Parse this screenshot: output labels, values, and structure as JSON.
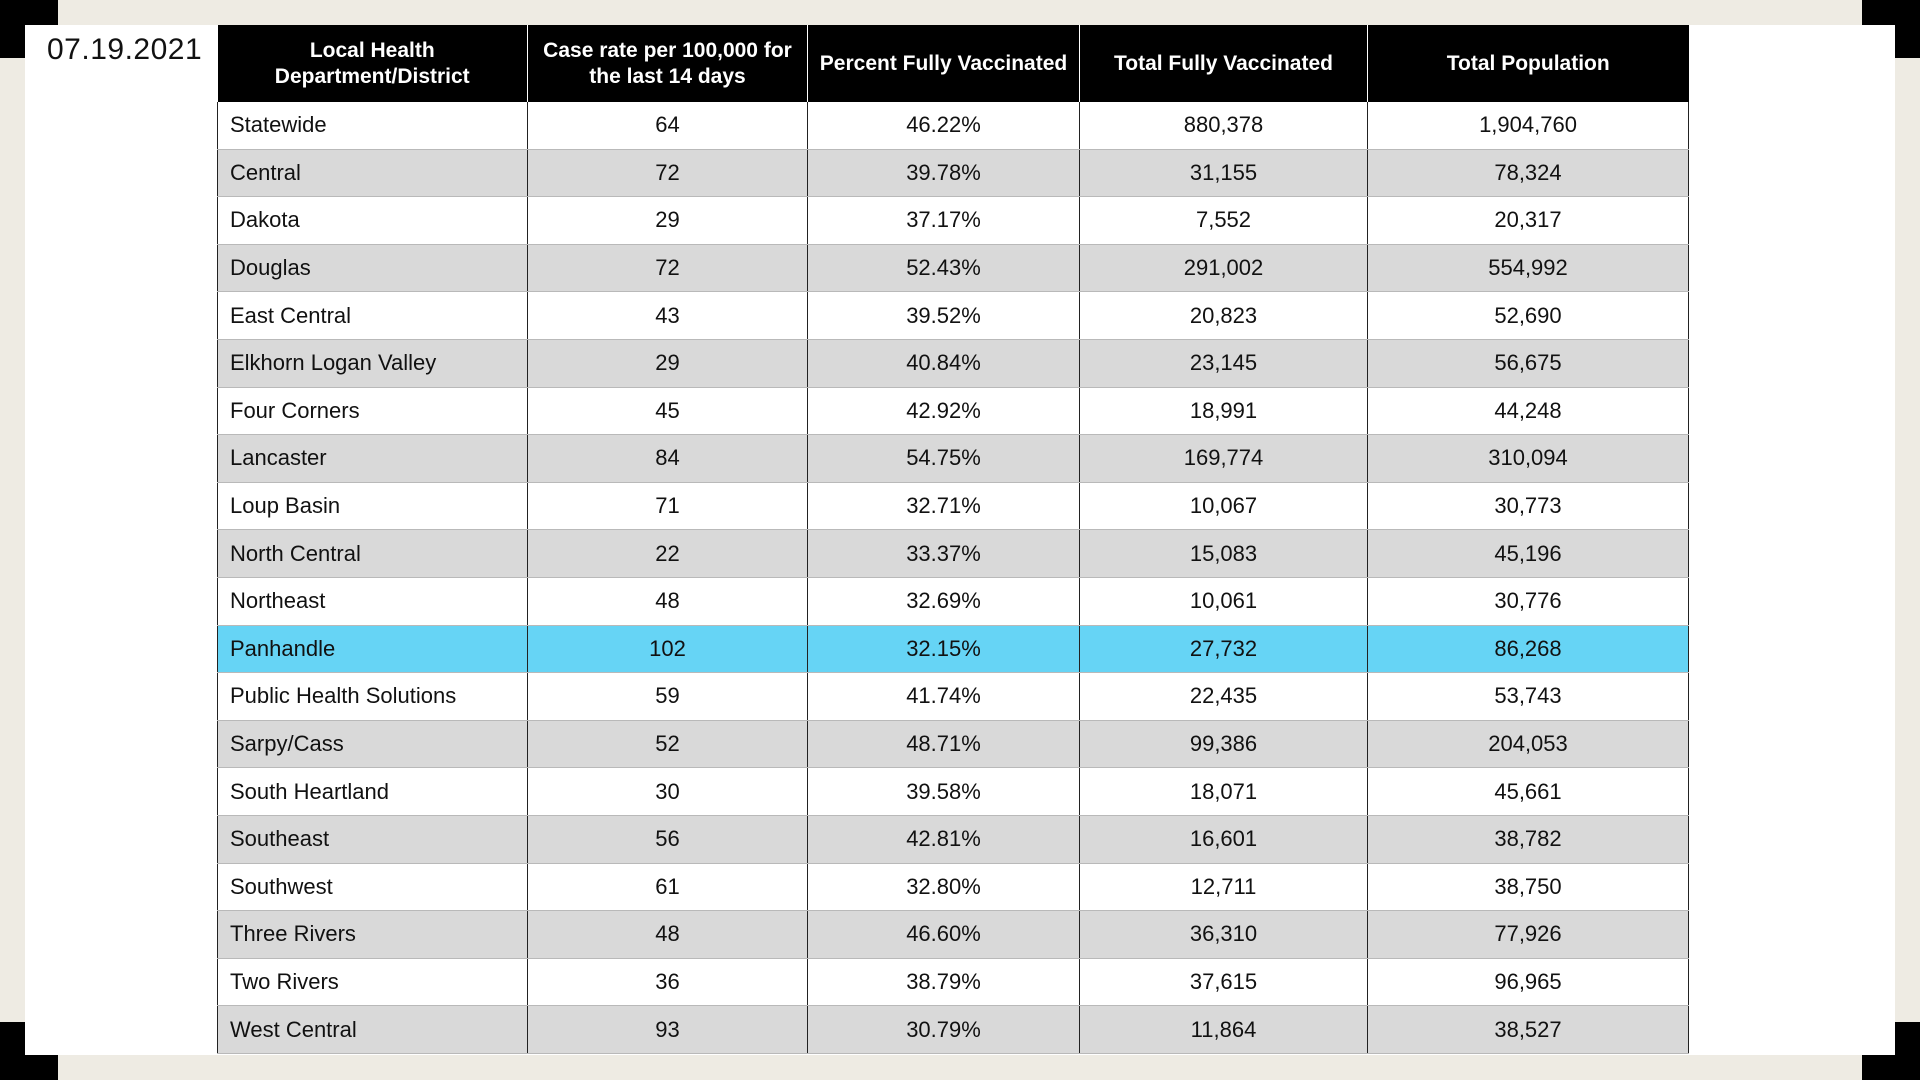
{
  "date": "07.19.2021",
  "headers": [
    "Local Health Department/District",
    "Case rate per 100,000 for the last 14 days",
    "Percent Fully Vaccinated",
    "Total Fully Vaccinated",
    "Total Population"
  ],
  "highlight_color": "#66d4f5",
  "rows": [
    {
      "name": "Statewide",
      "case_rate": "64",
      "pct": "46.22%",
      "total_vax": "880,378",
      "pop": "1,904,760"
    },
    {
      "name": "Central",
      "case_rate": "72",
      "pct": "39.78%",
      "total_vax": "31,155",
      "pop": "78,324"
    },
    {
      "name": "Dakota",
      "case_rate": "29",
      "pct": "37.17%",
      "total_vax": "7,552",
      "pop": "20,317"
    },
    {
      "name": "Douglas",
      "case_rate": "72",
      "pct": "52.43%",
      "total_vax": "291,002",
      "pop": "554,992"
    },
    {
      "name": "East Central",
      "case_rate": "43",
      "pct": "39.52%",
      "total_vax": "20,823",
      "pop": "52,690"
    },
    {
      "name": "Elkhorn Logan Valley",
      "case_rate": "29",
      "pct": "40.84%",
      "total_vax": "23,145",
      "pop": "56,675"
    },
    {
      "name": "Four Corners",
      "case_rate": "45",
      "pct": "42.92%",
      "total_vax": "18,991",
      "pop": "44,248"
    },
    {
      "name": "Lancaster",
      "case_rate": "84",
      "pct": "54.75%",
      "total_vax": "169,774",
      "pop": "310,094"
    },
    {
      "name": "Loup Basin",
      "case_rate": "71",
      "pct": "32.71%",
      "total_vax": "10,067",
      "pop": "30,773"
    },
    {
      "name": "North Central",
      "case_rate": "22",
      "pct": "33.37%",
      "total_vax": "15,083",
      "pop": "45,196"
    },
    {
      "name": "Northeast",
      "case_rate": "48",
      "pct": "32.69%",
      "total_vax": "10,061",
      "pop": "30,776"
    },
    {
      "name": "Panhandle",
      "case_rate": "102",
      "pct": "32.15%",
      "total_vax": "27,732",
      "pop": "86,268",
      "highlight": true
    },
    {
      "name": "Public Health Solutions",
      "case_rate": "59",
      "pct": "41.74%",
      "total_vax": "22,435",
      "pop": "53,743"
    },
    {
      "name": "Sarpy/Cass",
      "case_rate": "52",
      "pct": "48.71%",
      "total_vax": "99,386",
      "pop": "204,053"
    },
    {
      "name": "South Heartland",
      "case_rate": "30",
      "pct": "39.58%",
      "total_vax": "18,071",
      "pop": "45,661"
    },
    {
      "name": "Southeast",
      "case_rate": "56",
      "pct": "42.81%",
      "total_vax": "16,601",
      "pop": "38,782"
    },
    {
      "name": "Southwest",
      "case_rate": "61",
      "pct": "32.80%",
      "total_vax": "12,711",
      "pop": "38,750"
    },
    {
      "name": "Three Rivers",
      "case_rate": "48",
      "pct": "46.60%",
      "total_vax": "36,310",
      "pop": "77,926"
    },
    {
      "name": "Two Rivers",
      "case_rate": "36",
      "pct": "38.79%",
      "total_vax": "37,615",
      "pop": "96,965"
    },
    {
      "name": "West Central",
      "case_rate": "93",
      "pct": "30.79%",
      "total_vax": "11,864",
      "pop": "38,527"
    }
  ]
}
